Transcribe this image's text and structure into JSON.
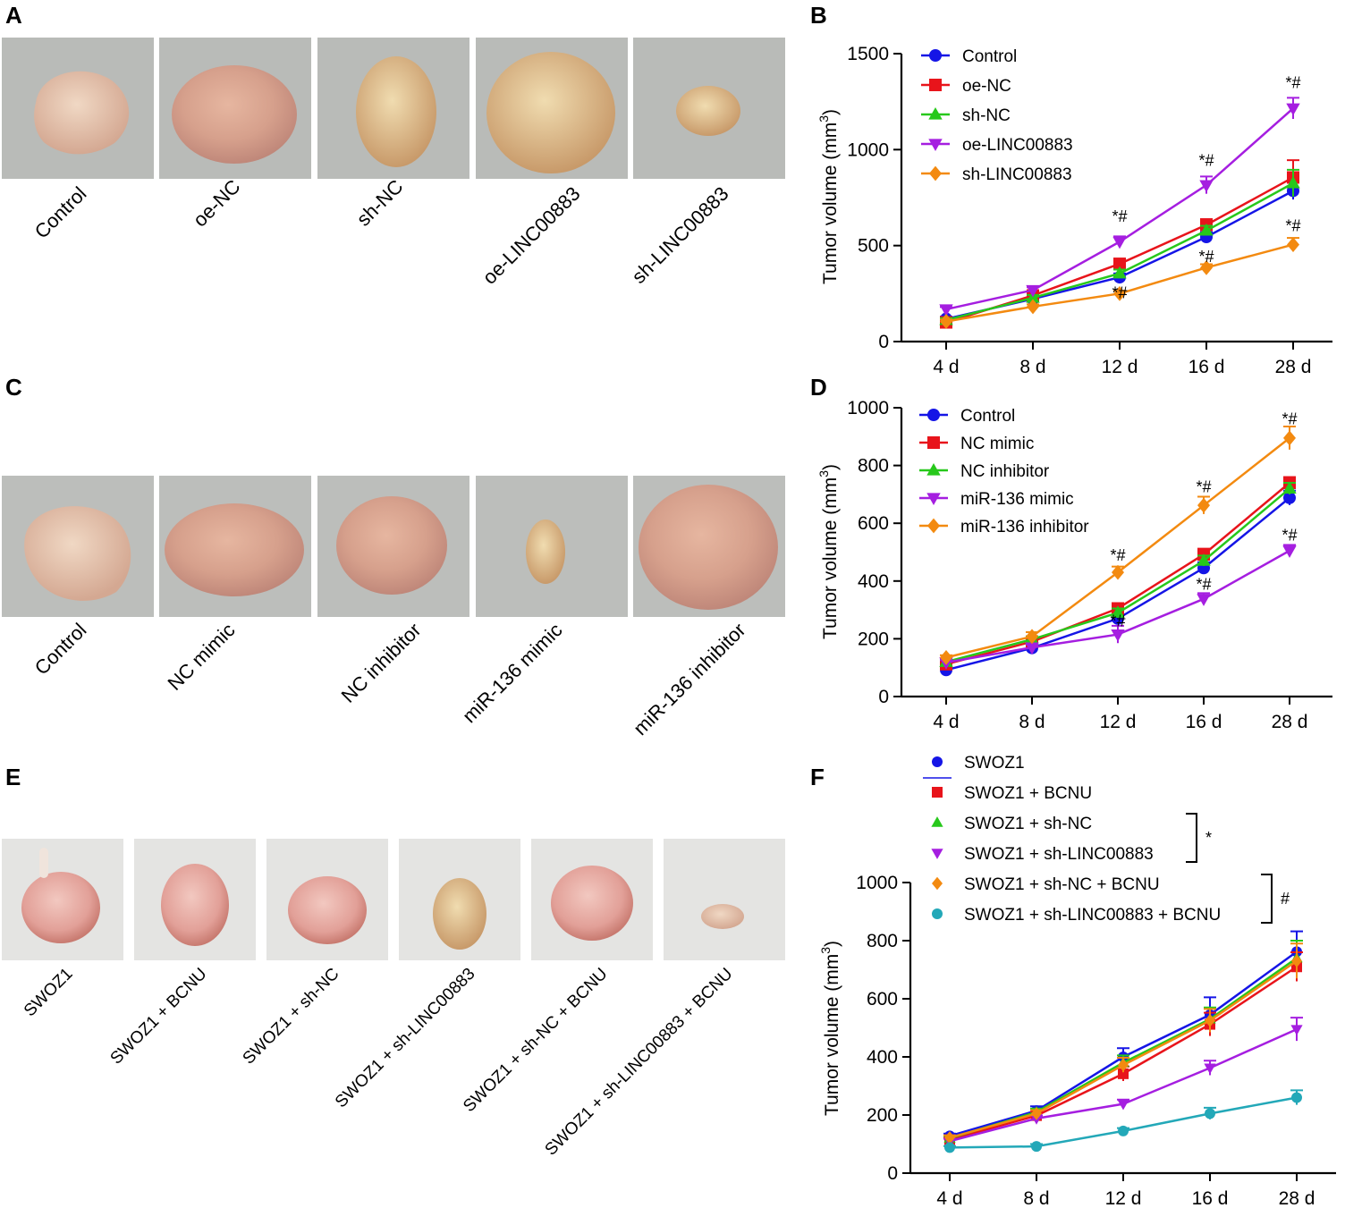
{
  "panels": {
    "A": {
      "label": "A",
      "photo_labels": [
        "Control",
        "oe-NC",
        "sh-NC",
        "oe-LINC00883",
        "sh-LINC00883"
      ],
      "photo_bg": "#b9bbb8"
    },
    "C": {
      "label": "C",
      "photo_labels": [
        "Control",
        "NC mimic",
        "NC inhibitor",
        "miR-136 mimic",
        "miR-136 inhibitor"
      ],
      "photo_bg": "#bcbebb"
    },
    "E": {
      "label": "E",
      "photo_labels": [
        "SWOZ1",
        "SWOZ1 + BCNU",
        "SWOZ1 + sh-NC",
        "SWOZ1 + sh-LINC00883",
        "SWOZ1 + sh-NC + BCNU",
        "SWOZ1 + sh-LINC00883 + BCNU"
      ],
      "photo_bg": "#e4e4e2"
    }
  },
  "chart_data": [
    {
      "panel": "B",
      "label": "B",
      "type": "line",
      "categories": [
        "4 d",
        "8 d",
        "12 d",
        "16 d",
        "28 d"
      ],
      "ylabel_main": "Tumor volume (mm",
      "ylabel_sup": "3",
      "ylabel_end": ")",
      "ylim": [
        0,
        1500
      ],
      "yticks": [
        0,
        500,
        1000,
        1500
      ],
      "series": [
        {
          "name": "Control",
          "color": "#1515e6",
          "marker": "circle",
          "values": [
            118,
            222,
            335,
            545,
            785
          ],
          "errors": [
            12,
            15,
            20,
            25,
            45
          ]
        },
        {
          "name": "oe-NC",
          "color": "#e8141b",
          "marker": "square",
          "values": [
            100,
            240,
            405,
            608,
            855
          ],
          "errors": [
            10,
            15,
            20,
            30,
            90
          ]
        },
        {
          "name": "sh-NC",
          "color": "#27c81b",
          "marker": "triangle-up",
          "values": [
            112,
            228,
            355,
            578,
            825
          ],
          "errors": [
            10,
            15,
            20,
            25,
            70
          ]
        },
        {
          "name": "oe-LINC00883",
          "color": "#a51ee0",
          "marker": "triangle-down",
          "values": [
            168,
            268,
            520,
            815,
            1215
          ],
          "errors": [
            12,
            15,
            28,
            45,
            55
          ]
        },
        {
          "name": "sh-LINC00883",
          "color": "#f38a10",
          "marker": "diamond",
          "values": [
            105,
            182,
            250,
            385,
            505
          ],
          "errors": [
            10,
            12,
            15,
            18,
            35
          ]
        }
      ],
      "annotations": [
        {
          "text": "*#",
          "category": "12 d",
          "value": 625
        },
        {
          "text": "*#",
          "category": "12 d",
          "value": 225
        },
        {
          "text": "*#",
          "category": "16 d",
          "value": 915
        },
        {
          "text": "*#",
          "category": "16 d",
          "value": 415
        },
        {
          "text": "*#",
          "category": "28 d",
          "value": 1320
        },
        {
          "text": "*#",
          "category": "28 d",
          "value": 575
        }
      ]
    },
    {
      "panel": "D",
      "label": "D",
      "type": "line",
      "categories": [
        "4 d",
        "8 d",
        "12 d",
        "16 d",
        "28 d"
      ],
      "ylabel_main": "Tumor volume (mm",
      "ylabel_sup": "3",
      "ylabel_end": ")",
      "ylim": [
        0,
        1000
      ],
      "yticks": [
        0,
        200,
        400,
        600,
        800,
        1000
      ],
      "series": [
        {
          "name": "Control",
          "color": "#1515e6",
          "marker": "circle",
          "values": [
            92,
            168,
            270,
            445,
            688
          ],
          "errors": [
            8,
            10,
            15,
            20,
            25
          ]
        },
        {
          "name": "NC mimic",
          "color": "#e8141b",
          "marker": "square",
          "values": [
            112,
            190,
            305,
            492,
            740
          ],
          "errors": [
            8,
            10,
            15,
            20,
            20
          ]
        },
        {
          "name": "NC inhibitor",
          "color": "#27c81b",
          "marker": "triangle-up",
          "values": [
            120,
            198,
            290,
            470,
            720
          ],
          "errors": [
            8,
            10,
            15,
            18,
            20
          ]
        },
        {
          "name": "miR-136 mimic",
          "color": "#a51ee0",
          "marker": "triangle-down",
          "values": [
            118,
            170,
            215,
            338,
            505
          ],
          "errors": [
            8,
            10,
            30,
            20,
            20
          ]
        },
        {
          "name": "miR-136 inhibitor",
          "color": "#f38a10",
          "marker": "diamond",
          "values": [
            135,
            208,
            430,
            662,
            895
          ],
          "errors": [
            8,
            15,
            20,
            30,
            40
          ]
        }
      ],
      "annotations": [
        {
          "text": "*#",
          "category": "12 d",
          "value": 470
        },
        {
          "text": "*#",
          "category": "12 d",
          "value": 243
        },
        {
          "text": "*#",
          "category": "16 d",
          "value": 707
        },
        {
          "text": "*#",
          "category": "16 d",
          "value": 370
        },
        {
          "text": "*#",
          "category": "28 d",
          "value": 942
        },
        {
          "text": "*#",
          "category": "28 d",
          "value": 540
        }
      ]
    },
    {
      "panel": "F",
      "label": "F",
      "type": "line",
      "categories": [
        "4 d",
        "8 d",
        "12 d",
        "16 d",
        "28 d"
      ],
      "ylabel_main": "Tumor volume (mm",
      "ylabel_sup": "3",
      "ylabel_end": ")",
      "ylim": [
        0,
        1000
      ],
      "yticks": [
        0,
        200,
        400,
        600,
        800,
        1000
      ],
      "series": [
        {
          "name": "SWOZ1",
          "color": "#1515e6",
          "marker": "circle",
          "values": [
            128,
            215,
            400,
            545,
            762
          ],
          "errors": [
            8,
            15,
            30,
            60,
            70
          ]
        },
        {
          "name": "SWOZ1 + BCNU",
          "color": "#e8141b",
          "marker": "square",
          "values": [
            115,
            198,
            342,
            512,
            710
          ],
          "errors": [
            8,
            12,
            25,
            40,
            50
          ]
        },
        {
          "name": "SWOZ1 + sh-NC",
          "color": "#27c81b",
          "marker": "triangle-up",
          "values": [
            120,
            210,
            380,
            530,
            740
          ],
          "errors": [
            8,
            12,
            25,
            40,
            60
          ]
        },
        {
          "name": "SWOZ1 + sh-LINC00883",
          "color": "#a51ee0",
          "marker": "triangle-down",
          "values": [
            110,
            188,
            238,
            362,
            495
          ],
          "errors": [
            8,
            10,
            15,
            25,
            40
          ]
        },
        {
          "name": "SWOZ1 + sh-NC + BCNU",
          "color": "#f38a10",
          "marker": "diamond",
          "values": [
            122,
            205,
            372,
            525,
            730
          ],
          "errors": [
            8,
            12,
            25,
            40,
            60
          ]
        },
        {
          "name": "SWOZ1 + sh-LINC00883 + BCNU",
          "color": "#23a8b8",
          "marker": "circle",
          "values": [
            88,
            92,
            145,
            205,
            260
          ],
          "errors": [
            5,
            8,
            10,
            20,
            25
          ]
        }
      ],
      "group_annotations": [
        {
          "text": "*",
          "from_series": "SWOZ1 + sh-NC",
          "to_series": "SWOZ1 + sh-LINC00883"
        },
        {
          "text": "#",
          "from_series": "SWOZ1 + sh-NC + BCNU",
          "to_series": "SWOZ1 + sh-LINC00883 + BCNU"
        }
      ]
    }
  ]
}
